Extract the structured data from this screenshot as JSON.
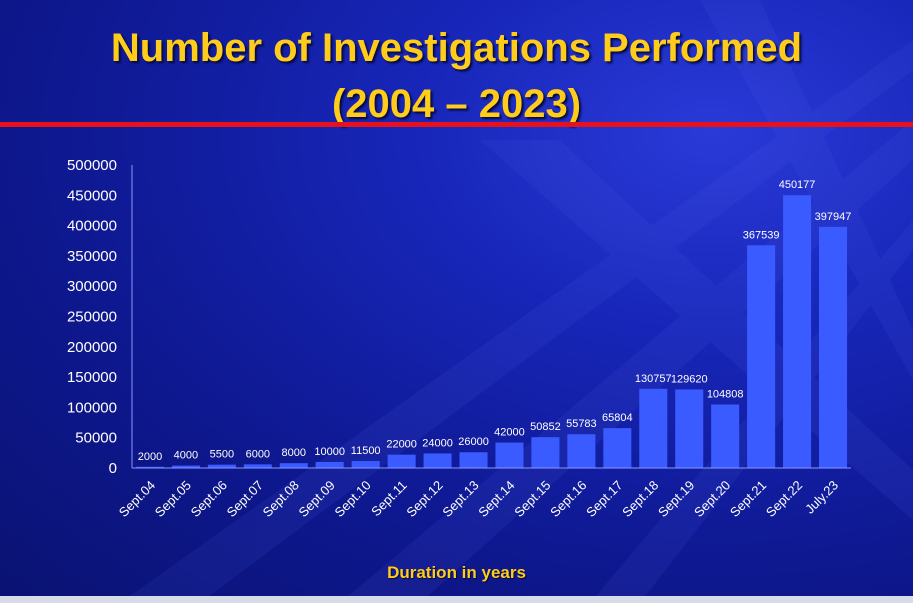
{
  "title_line1": "Number of Investigations Performed",
  "title_line2": "(2004 – 2023)",
  "colors": {
    "title": "#ffcc1a",
    "rule": "#e8101a",
    "bar": "#3a5bff",
    "axis": "#ffffff"
  },
  "chart_data": {
    "type": "bar",
    "categories": [
      "Sept.04",
      "Sept.05",
      "Sept.06",
      "Sept.07",
      "Sept.08",
      "Sept.09",
      "Sept.10",
      "Sept.11",
      "Sept.12",
      "Sept.13",
      "Sept.14",
      "Sept.15",
      "Sept.16",
      "Sept.17",
      "Sept.18",
      "Sept.19",
      "Sept.20",
      "Sept.21",
      "Sept.22",
      "July.23"
    ],
    "values": [
      2000,
      4000,
      5500,
      6000,
      8000,
      10000,
      11500,
      22000,
      24000,
      26000,
      42000,
      50852,
      55783,
      65804,
      130757,
      129620,
      104808,
      367539,
      450177,
      397947
    ],
    "data_labels": [
      "2000",
      "4000",
      "5500",
      "6000",
      "8000",
      "10000",
      "11500",
      "22000",
      "24000",
      "26000",
      "42000",
      "50852",
      "55783",
      "65804",
      "130757",
      "129620",
      "104808",
      "367539",
      "450177",
      "397947"
    ],
    "y_ticks": [
      "0",
      "50000",
      "100000",
      "150000",
      "200000",
      "250000",
      "300000",
      "350000",
      "400000",
      "450000",
      "500000"
    ],
    "ylim": [
      0,
      500000
    ],
    "xlabel": "Duration in years",
    "ylabel": "",
    "grid": false,
    "legend": "none"
  }
}
